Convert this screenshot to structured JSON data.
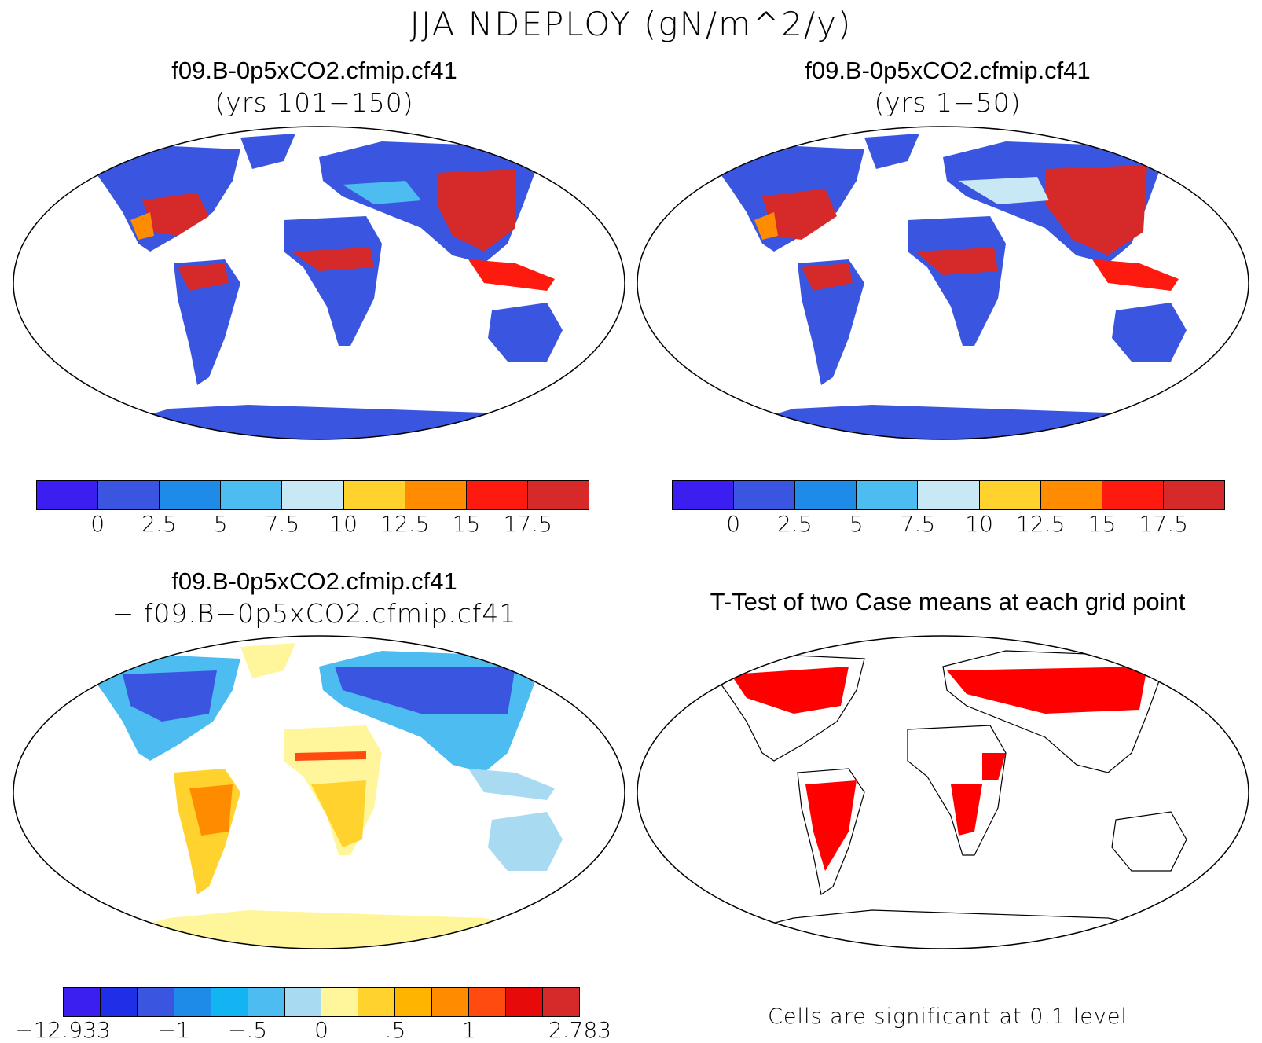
{
  "title": "JJA NDEPLOY (gN/m^2/y)",
  "panels": [
    {
      "id": "case1",
      "title": "f09.B-0p5xCO2.cfmip.cf41",
      "subtitle": "(yrs 101−150)",
      "colorbar": {
        "colors": [
          "#3a1ff0",
          "#3a56e0",
          "#1f8be8",
          "#4dbcf0",
          "#c8e8f5",
          "#ffd22e",
          "#ff8c00",
          "#ff1a10",
          "#d62a2a"
        ],
        "labels": [
          "0",
          "2.5",
          "5",
          "7.5",
          "10",
          "12.5",
          "15",
          "17.5"
        ]
      }
    },
    {
      "id": "case2",
      "title": "f09.B-0p5xCO2.cfmip.cf41",
      "subtitle": "(yrs 1−50)",
      "colorbar": {
        "colors": [
          "#3a1ff0",
          "#3a56e0",
          "#1f8be8",
          "#4dbcf0",
          "#c8e8f5",
          "#ffd22e",
          "#ff8c00",
          "#ff1a10",
          "#d62a2a"
        ],
        "labels": [
          "0",
          "2.5",
          "5",
          "7.5",
          "10",
          "12.5",
          "15",
          "17.5"
        ]
      }
    },
    {
      "id": "diff",
      "title": "f09.B-0p5xCO2.cfmip.cf41",
      "subtitle": "− f09.B−0p5xCO2.cfmip.cf41",
      "colorbar": {
        "colors": [
          "#3a1ff0",
          "#1f2fe8",
          "#3a56e0",
          "#1f8be8",
          "#12b4f2",
          "#4dbcf0",
          "#a8daf2",
          "#fff59a",
          "#ffd22e",
          "#ffb400",
          "#ff8c00",
          "#ff4a10",
          "#e60a0a",
          "#d62a2a"
        ],
        "labels": [
          "−12.933",
          "−1",
          "−.5",
          "0",
          ".5",
          "1",
          "2.783"
        ]
      }
    },
    {
      "id": "ttest",
      "title": "T-Test of two Case means at each grid point",
      "footnote": "Cells are significant at 0.1 level"
    }
  ],
  "colors": {
    "land_low": "#3a56e0",
    "land_high": "#d62a2a",
    "significant": "#ff0000",
    "diff_pos": "#fff59a"
  }
}
